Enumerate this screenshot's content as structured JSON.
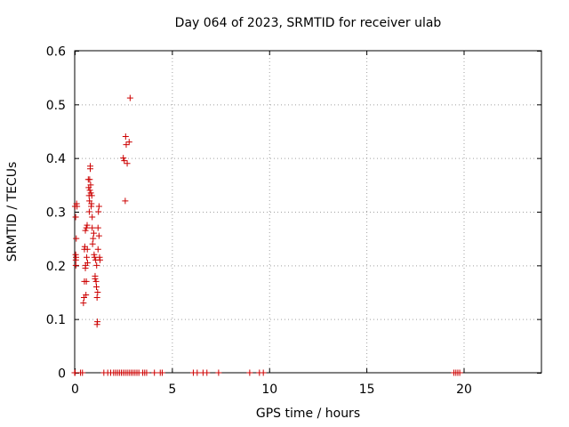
{
  "chart_data": {
    "type": "scatter",
    "title": "Day 064 of 2023, SRMTID for receiver ulab",
    "xlabel": "GPS time / hours",
    "ylabel": "SRMTID / TECUs",
    "xlim": [
      0,
      24
    ],
    "ylim": [
      0,
      0.6
    ],
    "xticks": [
      0,
      5,
      10,
      15,
      20
    ],
    "yticks": [
      0,
      0.1,
      0.2,
      0.3,
      0.4,
      0.5,
      0.6
    ],
    "ytick_labels": [
      "0",
      "0.1",
      "0.2",
      "0.3",
      "0.4",
      "0.5",
      "0.6"
    ],
    "grid": true,
    "marker": "+",
    "color": "#cc0000",
    "series": [
      {
        "x": [
          0.02,
          0.05,
          0.05,
          0.06,
          0.06,
          0.07,
          0.08,
          0.1,
          0.12,
          0.45,
          0.48,
          0.5,
          0.5,
          0.52,
          0.55,
          0.55,
          0.56,
          0.58,
          0.6,
          0.6,
          0.62,
          0.64,
          0.65,
          0.66,
          0.7,
          0.72,
          0.74,
          0.75,
          0.76,
          0.77,
          0.78,
          0.8,
          0.8,
          0.82,
          0.83,
          0.85,
          0.86,
          0.88,
          0.9,
          0.9,
          0.92,
          0.95,
          0.98,
          1.0,
          1.02,
          1.05,
          1.05,
          1.08,
          1.1,
          1.12,
          1.13,
          1.15,
          1.15,
          1.17,
          1.18,
          1.2,
          1.2,
          1.22,
          1.25,
          1.25,
          1.28,
          1.3,
          2.5,
          2.55,
          2.6,
          2.62,
          2.65,
          2.7,
          2.8,
          2.85,
          0.0,
          0.02,
          0.3,
          0.4,
          1.5,
          1.7,
          1.85,
          2.0,
          2.1,
          2.2,
          2.3,
          2.4,
          2.5,
          2.6,
          2.7,
          2.8,
          2.9,
          3.0,
          3.1,
          3.2,
          3.3,
          3.5,
          3.6,
          3.7,
          4.1,
          4.4,
          4.5,
          6.1,
          6.3,
          6.6,
          6.8,
          7.4,
          9.0,
          9.5,
          9.7,
          19.5,
          19.6,
          19.7,
          19.8
        ],
        "y": [
          0.31,
          0.29,
          0.22,
          0.21,
          0.2,
          0.215,
          0.25,
          0.315,
          0.31,
          0.13,
          0.14,
          0.17,
          0.23,
          0.235,
          0.195,
          0.265,
          0.2,
          0.145,
          0.17,
          0.27,
          0.215,
          0.275,
          0.23,
          0.205,
          0.36,
          0.345,
          0.33,
          0.3,
          0.32,
          0.36,
          0.34,
          0.38,
          0.385,
          0.35,
          0.335,
          0.31,
          0.315,
          0.33,
          0.29,
          0.27,
          0.24,
          0.25,
          0.26,
          0.22,
          0.215,
          0.18,
          0.175,
          0.21,
          0.17,
          0.16,
          0.2,
          0.14,
          0.09,
          0.095,
          0.15,
          0.23,
          0.27,
          0.3,
          0.31,
          0.255,
          0.215,
          0.21,
          0.4,
          0.395,
          0.32,
          0.44,
          0.425,
          0.39,
          0.43,
          0.512,
          0,
          0,
          0,
          0,
          0,
          0,
          0,
          0,
          0,
          0,
          0,
          0,
          0,
          0,
          0,
          0,
          0,
          0,
          0,
          0,
          0,
          0,
          0,
          0,
          0,
          0,
          0,
          0,
          0,
          0,
          0,
          0,
          0,
          0,
          0,
          0,
          0,
          0,
          0
        ]
      }
    ]
  }
}
